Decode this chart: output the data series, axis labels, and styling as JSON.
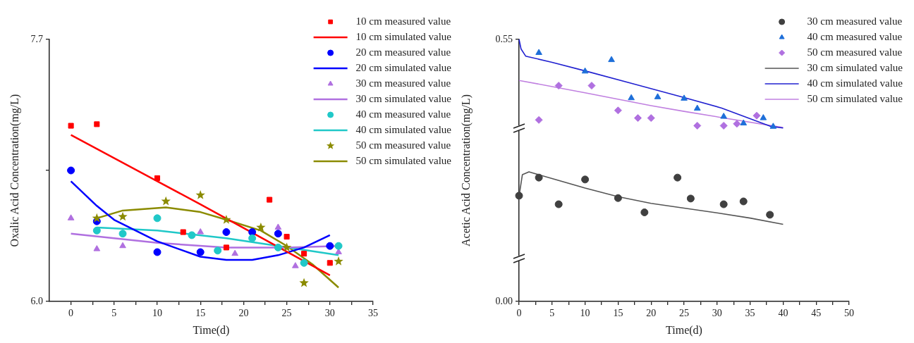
{
  "chart_data": [
    {
      "type": "scatter",
      "xlabel": "Time(d)",
      "ylabel": "Oxalic Acid Concentration(mg/L)",
      "xlim": [
        -2.5,
        35
      ],
      "ylim": [
        6,
        7.7
      ],
      "xticks": [
        0,
        {
          "value": 2.5,
          "label": null
        },
        5,
        {
          "value": 7.5,
          "label": null
        },
        10,
        {
          "value": 12.5,
          "label": null
        },
        15,
        {
          "value": 17.5,
          "label": null
        },
        20,
        {
          "value": 22.5,
          "label": null
        },
        25,
        {
          "value": 27.5,
          "label": null
        },
        30,
        {
          "value": 32.5,
          "label": null
        },
        35
      ],
      "yticks": [
        {
          "value": 6,
          "label": "6.0"
        },
        {
          "value": 6.85,
          "label": null
        },
        7.7
      ],
      "legend": "top right",
      "series": [
        {
          "name": "10 cm measured value",
          "type": "scatter",
          "marker": "square",
          "color": "#ff0000",
          "x": [
            0,
            3,
            10,
            13,
            18,
            23,
            25,
            27,
            30
          ],
          "values": [
            7.14,
            7.15,
            6.8,
            6.45,
            6.35,
            6.66,
            6.42,
            6.31,
            6.25
          ]
        },
        {
          "name": "10 cm simulated value",
          "type": "line",
          "marker": "none",
          "color": "#ff0000",
          "x": [
            0,
            15,
            30
          ],
          "values": [
            7.08,
            6.63,
            6.17
          ]
        },
        {
          "name": "20 cm measured value",
          "type": "scatter",
          "marker": "circle",
          "color": "#0000ff",
          "x": [
            0,
            3,
            10,
            15,
            18,
            21,
            24,
            30
          ],
          "values": [
            6.85,
            6.52,
            6.32,
            6.32,
            6.45,
            6.45,
            6.44,
            6.36
          ]
        },
        {
          "name": "20 cm simulated value",
          "type": "line",
          "marker": "none",
          "color": "#0000ff",
          "x": [
            0,
            3,
            5,
            10,
            15,
            18,
            21,
            24,
            27,
            30
          ],
          "values": [
            6.78,
            6.62,
            6.53,
            6.39,
            6.29,
            6.27,
            6.27,
            6.3,
            6.35,
            6.43
          ]
        },
        {
          "name": "30 cm measured value",
          "type": "scatter",
          "marker": "triangle",
          "color": "#b070e0",
          "x": [
            0,
            3,
            6,
            10,
            15,
            19,
            24,
            26,
            31
          ],
          "values": [
            6.54,
            6.34,
            6.36,
            null,
            6.45,
            6.31,
            6.48,
            6.23,
            6.32
          ]
        },
        {
          "name": "30 cm simulated value",
          "type": "line",
          "marker": "none",
          "color": "#b070e0",
          "x": [
            0,
            10,
            18,
            25,
            31
          ],
          "values": [
            6.44,
            6.38,
            6.35,
            6.35,
            6.36
          ]
        },
        {
          "name": "40 cm measured value",
          "type": "scatter",
          "marker": "circle",
          "color": "#20c8c8",
          "x": [
            3,
            6,
            10,
            14,
            17,
            21,
            24,
            27,
            31
          ],
          "values": [
            6.46,
            6.44,
            6.54,
            6.43,
            6.33,
            6.41,
            6.35,
            6.25,
            6.36
          ]
        },
        {
          "name": "40 cm simulated value",
          "type": "line",
          "marker": "none",
          "color": "#20c8c8",
          "x": [
            3,
            10,
            18,
            24,
            31
          ],
          "values": [
            6.48,
            6.46,
            6.41,
            6.36,
            6.3
          ]
        },
        {
          "name": "50 cm measured value",
          "type": "scatter",
          "marker": "star",
          "color": "#8b8b00",
          "x": [
            3,
            6,
            11,
            15,
            18,
            22,
            25,
            27,
            31
          ],
          "values": [
            6.54,
            6.55,
            6.65,
            6.69,
            6.53,
            6.48,
            6.35,
            6.12,
            6.26
          ]
        },
        {
          "name": "50 cm simulated value",
          "type": "line",
          "marker": "none",
          "color": "#8b8b00",
          "x": [
            3,
            6,
            11,
            15,
            18,
            22,
            25,
            28,
            31
          ],
          "values": [
            6.54,
            6.59,
            6.61,
            6.58,
            6.53,
            6.46,
            6.36,
            6.24,
            6.09
          ]
        }
      ]
    },
    {
      "type": "scatter",
      "xlabel": "Time(d)",
      "ylabel": "Acetic Acid Concentration(mg/L)",
      "xlim": [
        0,
        50
      ],
      "ylim": [
        0,
        0.55
      ],
      "xticks": [
        0,
        {
          "value": 2.5,
          "label": null
        },
        5,
        {
          "value": 7.5,
          "label": null
        },
        10,
        {
          "value": 12.5,
          "label": null
        },
        15,
        {
          "value": 17.5,
          "label": null
        },
        20,
        {
          "value": 22.5,
          "label": null
        },
        25,
        {
          "value": 27.5,
          "label": null
        },
        30,
        {
          "value": 32.5,
          "label": null
        },
        35,
        {
          "value": 37.5,
          "label": null
        },
        40,
        {
          "value": 42.5,
          "label": null
        },
        45,
        {
          "value": 47.5,
          "label": null
        },
        50
      ],
      "yticks": [
        {
          "value": 0,
          "label": "0.00"
        },
        0.55
      ],
      "legend": "top right",
      "series": [
        {
          "name": "30 cm measured value",
          "type": "scatter",
          "marker": "circle",
          "color": "#404040",
          "x": [
            0,
            3,
            6,
            10,
            15,
            19,
            24,
            26,
            31,
            34,
            38
          ],
          "values": [
            0.222,
            0.26,
            0.204,
            0.256,
            0.217,
            0.187,
            0.26,
            0.216,
            0.204,
            0.21,
            0.182
          ]
        },
        {
          "name": "40 cm measured value",
          "type": "scatter",
          "marker": "triangle",
          "color": "#1e6fd9",
          "x": [
            3,
            10,
            14,
            17,
            21,
            25,
            27,
            31,
            34,
            37,
            38.5
          ],
          "values": [
            0.522,
            0.483,
            0.507,
            0.427,
            0.429,
            0.426,
            0.405,
            0.388,
            0.374,
            0.385,
            0.367
          ]
        },
        {
          "name": "50 cm measured value",
          "type": "scatter",
          "marker": "diamond",
          "color": "#b070e0",
          "x": [
            3,
            6,
            11,
            15,
            18,
            20,
            27,
            31,
            33,
            36
          ],
          "values": [
            0.381,
            0.453,
            0.453,
            0.401,
            0.385,
            0.385,
            0.369,
            0.369,
            0.373,
            0.39
          ]
        },
        {
          "name": "30 cm simulated value",
          "type": "line",
          "marker": "none",
          "color": "#555555",
          "x": [
            0,
            0.5,
            1.5,
            5,
            10,
            15,
            20,
            25,
            30,
            35,
            40
          ],
          "values": [
            0.221,
            0.266,
            0.272,
            0.258,
            0.238,
            0.22,
            0.206,
            0.196,
            0.186,
            0.175,
            0.162
          ]
        },
        {
          "name": "40 cm simulated value",
          "type": "line",
          "marker": "none",
          "color": "#2020d0",
          "x": [
            0,
            0.3,
            1,
            5,
            10,
            17,
            25,
            30.7,
            38,
            40
          ],
          "values": [
            0.55,
            0.53,
            0.515,
            0.502,
            0.484,
            0.458,
            0.428,
            0.406,
            0.368,
            0.364
          ]
        },
        {
          "name": "50 cm simulated value",
          "type": "line",
          "marker": "none",
          "color": "#c080e0",
          "x": [
            0,
            10,
            20,
            25,
            30.7,
            40
          ],
          "values": [
            0.464,
            0.438,
            0.411,
            0.399,
            0.386,
            0.365
          ]
        }
      ]
    }
  ]
}
